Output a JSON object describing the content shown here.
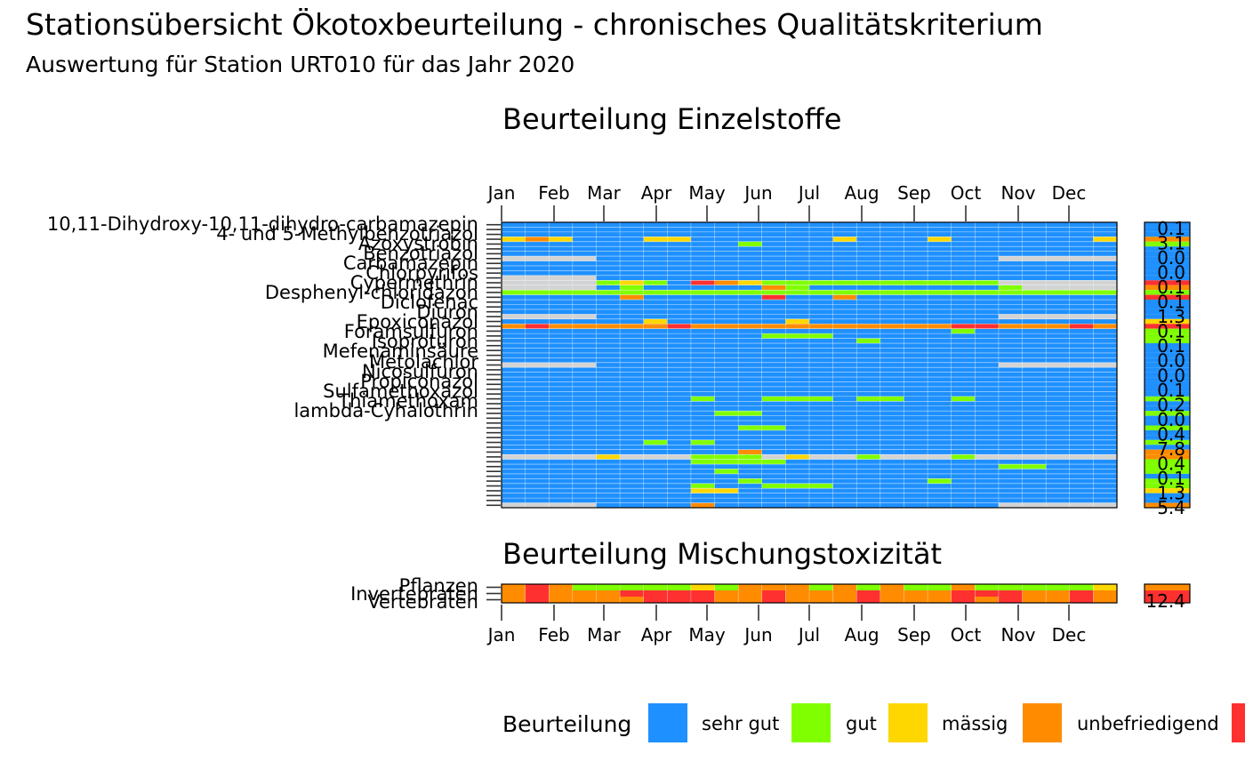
{
  "title": "Stationsübersicht Ökotoxbeurteilung - chronisches Qualitätskriterium",
  "subtitle": "Auswertung für Station URT010 für das Jahr 2020",
  "colors": {
    "sehr_gut": "#1e90ff",
    "gut": "#7fff00",
    "maessig": "#ffd700",
    "unbefriedigend": "#ff8c00",
    "schlecht": "#ff3030",
    "keine_daten": "#d3d3d3"
  },
  "chart_data": [
    {
      "type": "heatmap",
      "title": "Beurteilung Einzelstoffe",
      "x_tick_labels": [
        "Jan",
        "Feb",
        "Mar",
        "Apr",
        "May",
        "Jun",
        "Jul",
        "Aug",
        "Sep",
        "Oct",
        "Nov",
        "Dec"
      ],
      "n_time_bins": 26,
      "n_rows": 59,
      "row_labels_legible": [
        "10,11-Dihydroxy-10,11-dihydro-carbamazepin",
        "4- und 5-Methylbenzotriazol",
        "Azoxystrobin",
        "Benzotriazol",
        "Carbamazepin",
        "Chlorpyrifos",
        "Cypermethrin",
        "Desphenyl-chloridazon",
        "Diclofenac",
        "Diuron",
        "Epoxiconazol",
        "Foramsulfuron",
        "Isoproturon",
        "Mefenaminsäure",
        "Metolachlor",
        "Nicosulfuron",
        "Propiconazol",
        "Sulfamethoxazol",
        "Thiamethoxam",
        "lambda-Cyhalothrin"
      ],
      "cells_non_default": [
        {
          "row": 3,
          "bins": [
            0
          ],
          "class": "maessig"
        },
        {
          "row": 3,
          "bins": [
            1
          ],
          "class": "unbefriedigend"
        },
        {
          "row": 3,
          "bins": [
            2,
            6,
            7,
            14,
            18,
            25
          ],
          "class": "maessig"
        },
        {
          "row": 4,
          "bins": [
            10
          ],
          "class": "gut"
        },
        {
          "row": 7,
          "bins": [
            0,
            1,
            2,
            3,
            21,
            22,
            23,
            24,
            25
          ],
          "class": "keine_daten"
        },
        {
          "row": 11,
          "bins": [
            0,
            1,
            2,
            3
          ],
          "class": "keine_daten"
        },
        {
          "row": 12,
          "bins": [
            0,
            1,
            2,
            3
          ],
          "class": "keine_daten"
        },
        {
          "row": 12,
          "bins": [
            4,
            6,
            11,
            12,
            13,
            14,
            15,
            16,
            17,
            18,
            19,
            20
          ],
          "class": "gut"
        },
        {
          "row": 12,
          "bins": [
            5
          ],
          "class": "maessig"
        },
        {
          "row": 12,
          "bins": [
            8
          ],
          "class": "schlecht"
        },
        {
          "row": 12,
          "bins": [
            9
          ],
          "class": "unbefriedigend"
        },
        {
          "row": 12,
          "bins": [
            10
          ],
          "class": "maessig"
        },
        {
          "row": 12,
          "bins": [
            21,
            22,
            23,
            24,
            25
          ],
          "class": "keine_daten"
        },
        {
          "row": 13,
          "bins": [
            0,
            1,
            2,
            3
          ],
          "class": "keine_daten"
        },
        {
          "row": 13,
          "bins": [
            5,
            12
          ],
          "class": "gut"
        },
        {
          "row": 13,
          "bins": [
            11
          ],
          "class": "unbefriedigend"
        },
        {
          "row": 13,
          "bins": [
            21
          ],
          "class": "gut"
        },
        {
          "row": 13,
          "bins": [
            22,
            23,
            24,
            25
          ],
          "class": "keine_daten"
        },
        {
          "row": 14,
          "bins": [
            0,
            1,
            2,
            3,
            4,
            5,
            6,
            7,
            8,
            9,
            10,
            11,
            12,
            13,
            14,
            15,
            16,
            17,
            18,
            19,
            20,
            21,
            22,
            23,
            24,
            25
          ],
          "class": "gut"
        },
        {
          "row": 15,
          "bins": [
            5,
            14
          ],
          "class": "unbefriedigend"
        },
        {
          "row": 15,
          "bins": [
            11
          ],
          "class": "schlecht"
        },
        {
          "row": 19,
          "bins": [
            0,
            1,
            2,
            3,
            21,
            22,
            23,
            24,
            25
          ],
          "class": "keine_daten"
        },
        {
          "row": 20,
          "bins": [
            6,
            12
          ],
          "class": "maessig"
        },
        {
          "row": 21,
          "bins": [
            0,
            1,
            2,
            3,
            4,
            5,
            6,
            7,
            8,
            9,
            10,
            11,
            12,
            13,
            14,
            15,
            16,
            17,
            18,
            19,
            20,
            21,
            22,
            23,
            24,
            25
          ],
          "class": "unbefriedigend"
        },
        {
          "row": 21,
          "bins": [
            1,
            7,
            19,
            20,
            24
          ],
          "class": "schlecht"
        },
        {
          "row": 22,
          "bins": [
            19
          ],
          "class": "gut"
        },
        {
          "row": 23,
          "bins": [
            11,
            12,
            13
          ],
          "class": "gut"
        },
        {
          "row": 24,
          "bins": [
            15
          ],
          "class": "gut"
        },
        {
          "row": 29,
          "bins": [
            0,
            1,
            2,
            3,
            21,
            22,
            23,
            24,
            25
          ],
          "class": "keine_daten"
        },
        {
          "row": 36,
          "bins": [
            8,
            11,
            12,
            13,
            15,
            16,
            19
          ],
          "class": "gut"
        },
        {
          "row": 39,
          "bins": [
            9,
            10
          ],
          "class": "gut"
        },
        {
          "row": 42,
          "bins": [
            10,
            11
          ],
          "class": "gut"
        },
        {
          "row": 45,
          "bins": [
            6,
            8
          ],
          "class": "gut"
        },
        {
          "row": 47,
          "bins": [
            10
          ],
          "class": "unbefriedigend"
        },
        {
          "row": 48,
          "bins": [
            17
          ],
          "class": "unbefriedigend"
        },
        {
          "row": 48,
          "bins": [
            0,
            1,
            2,
            3,
            4,
            5,
            6,
            7,
            8,
            9,
            10,
            11,
            12,
            13,
            14,
            15,
            16,
            17,
            18,
            19,
            20,
            21,
            22,
            23,
            24,
            25
          ],
          "class": "keine_daten"
        },
        {
          "row": 48,
          "bins": [
            4
          ],
          "class": "maessig"
        },
        {
          "row": 48,
          "bins": [
            8,
            9,
            10,
            15,
            19
          ],
          "class": "gut"
        },
        {
          "row": 48,
          "bins": [
            12
          ],
          "class": "maessig"
        },
        {
          "row": 49,
          "bins": [
            8,
            9,
            10,
            11
          ],
          "class": "gut"
        },
        {
          "row": 50,
          "bins": [
            21,
            22
          ],
          "class": "gut"
        },
        {
          "row": 51,
          "bins": [
            9
          ],
          "class": "gut"
        },
        {
          "row": 53,
          "bins": [
            10,
            18
          ],
          "class": "gut"
        },
        {
          "row": 54,
          "bins": [
            8
          ],
          "class": "gut"
        },
        {
          "row": 54,
          "bins": [
            11,
            12,
            13
          ],
          "class": "gut"
        },
        {
          "row": 55,
          "bins": [
            8,
            9
          ],
          "class": "maessig"
        },
        {
          "row": 58,
          "bins": [
            0,
            1,
            2,
            3,
            21,
            22,
            23,
            24,
            25
          ],
          "class": "keine_daten"
        },
        {
          "row": 58,
          "bins": [
            8
          ],
          "class": "unbefriedigend"
        }
      ],
      "max_values": [
        "0.1",
        "3.1",
        "0.0",
        "0.0",
        "0.1",
        "0.1",
        "1.3",
        "0.1",
        "0.1",
        "0.0",
        "0.0",
        "0.1",
        "0.2",
        "0.0",
        "0.4",
        "7.8",
        "0.4",
        "0.1",
        "1.3",
        "5.4"
      ]
    },
    {
      "type": "heatmap",
      "title": "Beurteilung Mischungstoxizität",
      "x_tick_labels": [
        "Jan",
        "Feb",
        "Mar",
        "Apr",
        "May",
        "Jun",
        "Jul",
        "Aug",
        "Sep",
        "Oct",
        "Nov",
        "Dec"
      ],
      "row_labels": [
        "Pflanzen",
        "Invertebraten",
        "Vertebraten"
      ],
      "rows": [
        [
          "unbefriedigend",
          "schlecht",
          "unbefriedigend",
          "gut",
          "gut",
          "gut",
          "gut",
          "gut",
          "maessig",
          "gut",
          "unbefriedigend",
          "unbefriedigend",
          "unbefriedigend",
          "gut",
          "unbefriedigend",
          "gut",
          "unbefriedigend",
          "gut",
          "gut",
          "unbefriedigend",
          "gut",
          "gut",
          "gut",
          "gut",
          "gut",
          "maessig"
        ],
        [
          "unbefriedigend",
          "schlecht",
          "unbefriedigend",
          "unbefriedigend",
          "unbefriedigend",
          "schlecht",
          "schlecht",
          "schlecht",
          "schlecht",
          "unbefriedigend",
          "unbefriedigend",
          "schlecht",
          "unbefriedigend",
          "unbefriedigend",
          "unbefriedigend",
          "schlecht",
          "unbefriedigend",
          "unbefriedigend",
          "unbefriedigend",
          "schlecht",
          "schlecht",
          "schlecht",
          "unbefriedigend",
          "unbefriedigend",
          "schlecht",
          "unbefriedigend"
        ],
        [
          "unbefriedigend",
          "schlecht",
          "unbefriedigend",
          "unbefriedigend",
          "unbefriedigend",
          "unbefriedigend",
          "schlecht",
          "schlecht",
          "schlecht",
          "unbefriedigend",
          "unbefriedigend",
          "schlecht",
          "unbefriedigend",
          "unbefriedigend",
          "unbefriedigend",
          "schlecht",
          "unbefriedigend",
          "unbefriedigend",
          "unbefriedigend",
          "schlecht",
          "unbefriedigend",
          "schlecht",
          "unbefriedigend",
          "unbefriedigend",
          "schlecht",
          "unbefriedigend"
        ]
      ],
      "summary_rows": [
        "unbefriedigend",
        "schlecht",
        "schlecht"
      ],
      "max_values": [
        "12.4"
      ]
    }
  ],
  "legend": {
    "title": "Beurteilung",
    "items": [
      {
        "key": "sehr_gut",
        "label": "sehr gut"
      },
      {
        "key": "gut",
        "label": "gut"
      },
      {
        "key": "maessig",
        "label": "mässig"
      },
      {
        "key": "unbefriedigend",
        "label": "unbefriedigend"
      },
      {
        "key": "schlecht",
        "label": ""
      }
    ]
  }
}
